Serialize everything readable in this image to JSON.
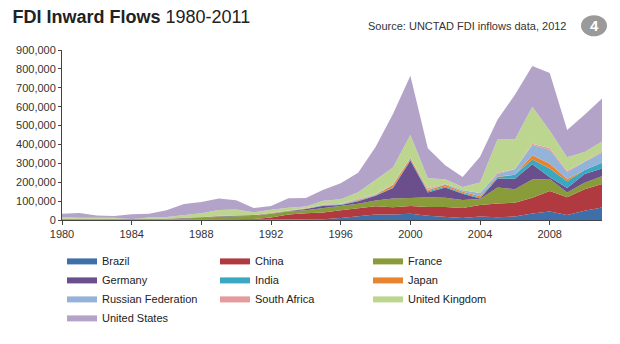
{
  "chart_data": {
    "type": "area",
    "title": "FDI Inward Flows",
    "subtitle": "1980-2011",
    "annotations": [
      "Source: UNCTAD FDI inflows data, 2012",
      "4"
    ],
    "stacked": true,
    "grid": false,
    "legend": "bottom",
    "x": [
      1980,
      1981,
      1982,
      1983,
      1984,
      1985,
      1986,
      1987,
      1988,
      1989,
      1990,
      1991,
      1992,
      1993,
      1994,
      1995,
      1996,
      1997,
      1998,
      1999,
      2000,
      2001,
      2002,
      2003,
      2004,
      2005,
      2006,
      2007,
      2008,
      2009,
      2010,
      2011
    ],
    "xlim": [
      1980,
      2011
    ],
    "xticks": [
      1980,
      1984,
      1988,
      1992,
      1996,
      2000,
      2004,
      2008
    ],
    "ylim": [
      0,
      900000
    ],
    "yticks": [
      0,
      {
        "value": 100000,
        "label": "100,000"
      },
      {
        "value": 200000,
        "label": "200,000"
      },
      {
        "value": 300000,
        "label": "300,000"
      },
      {
        "value": 400000,
        "label": "400,000"
      },
      {
        "value": 500000,
        "label": "500,000"
      },
      {
        "value": 600000,
        "label": "600,000"
      },
      {
        "value": 700000,
        "label": "700,000"
      },
      {
        "value": 800000,
        "label": "800,000"
      },
      {
        "value": 900000,
        "label": "900,000"
      }
    ],
    "series": [
      {
        "name": "Brazil",
        "color": "#3e6fa8",
        "values": [
          1910,
          2522,
          3115,
          1326,
          1501,
          1418,
          317,
          1169,
          2805,
          1130,
          989,
          1102,
          2061,
          1291,
          2150,
          4405,
          10792,
          18993,
          28856,
          28578,
          32779,
          22457,
          16590,
          10144,
          18146,
          15066,
          18822,
          34585,
          45058,
          25949,
          48506,
          66660
        ]
      },
      {
        "name": "China",
        "color": "#b03a3f",
        "values": [
          57,
          265,
          430,
          916,
          1419,
          1956,
          2244,
          2314,
          3194,
          3393,
          3487,
          4366,
          11156,
          27515,
          33787,
          35849,
          40180,
          44237,
          43751,
          38753,
          40715,
          46878,
          52743,
          53505,
          60630,
          72406,
          72715,
          83521,
          108312,
          95000,
          114734,
          123985
        ]
      },
      {
        "name": "France",
        "color": "#8a9b3a",
        "values": [
          3328,
          2426,
          1563,
          1631,
          2198,
          2210,
          2749,
          4621,
          7204,
          10308,
          15613,
          15153,
          17849,
          16439,
          15574,
          23679,
          21960,
          23178,
          30984,
          46545,
          43250,
          50477,
          49035,
          42498,
          32560,
          84949,
          71848,
          96221,
          64184,
          24215,
          33627,
          40945
        ]
      },
      {
        "name": "Germany",
        "color": "#6a4f8c",
        "values": [
          333,
          320,
          803,
          1767,
          559,
          1190,
          1212,
          1924,
          1178,
          7156,
          2963,
          4108,
          2659,
          1723,
          7146,
          12022,
          6573,
          12244,
          24593,
          56077,
          198277,
          26414,
          53523,
          32368,
          2000,
          47442,
          55626,
          80208,
          8109,
          24156,
          46860,
          40402
        ]
      },
      {
        "name": "India",
        "color": "#3aa8c0",
        "values": [
          79,
          92,
          72,
          6,
          19,
          106,
          118,
          212,
          91,
          252,
          237,
          75,
          252,
          532,
          974,
          2151,
          2525,
          3619,
          2633,
          2168,
          3588,
          5478,
          5630,
          4321,
          5778,
          7622,
          20328,
          25350,
          47139,
          35657,
          21125,
          31554
        ]
      },
      {
        "name": "Japan",
        "color": "#e8842f",
        "values": [
          278,
          189,
          439,
          416,
          0,
          642,
          226,
          1165,
          0,
          0,
          1806,
          1284,
          2756,
          210,
          888,
          41,
          228,
          3224,
          3192,
          12742,
          8323,
          6241,
          9239,
          6324,
          7816,
          2775,
          0,
          22549,
          24426,
          11939,
          0,
          0
        ]
      },
      {
        "name": "Russian Federation",
        "color": "#95b3d8",
        "values": [
          0,
          0,
          0,
          0,
          0,
          0,
          0,
          0,
          0,
          0,
          0,
          0,
          1161,
          1211,
          690,
          2065,
          2579,
          4865,
          2761,
          3309,
          2714,
          2748,
          3461,
          7958,
          15444,
          12886,
          29701,
          55073,
          74783,
          36583,
          43168,
          52878
        ]
      },
      {
        "name": "South Africa",
        "color": "#e59a9b",
        "values": [
          0,
          72,
          0,
          69,
          0,
          0,
          0,
          0,
          0,
          0,
          0,
          0,
          3,
          11,
          374,
          1241,
          818,
          3817,
          561,
          1502,
          969,
          7270,
          1480,
          783,
          701,
          6647,
          311,
          5695,
          9006,
          7624,
          1228,
          5807
        ]
      },
      {
        "name": "United Kingdom",
        "color": "#bcd68f",
        "values": [
          10123,
          5891,
          5422,
          5132,
          0,
          5837,
          8569,
          15450,
          21356,
          30586,
          30461,
          14846,
          16824,
          15468,
          9251,
          19969,
          24435,
          33227,
          74324,
          87979,
          118764,
          52623,
          24029,
          16778,
          55963,
          176006,
          156186,
          196390,
          91489,
          71140,
          50604,
          53949
        ]
      },
      {
        "name": "United States",
        "color": "#b4a3c8",
        "values": [
          16918,
          25195,
          12464,
          10457,
          24748,
          20010,
          35623,
          58219,
          59424,
          61411,
          48422,
          22799,
          19222,
          50663,
          45095,
          58772,
          84455,
          103398,
          174434,
          283376,
          314007,
          159461,
          74501,
          53146,
          135826,
          104773,
          237136,
          215952,
          306366,
          143604,
          197905,
          226937
        ]
      }
    ]
  }
}
